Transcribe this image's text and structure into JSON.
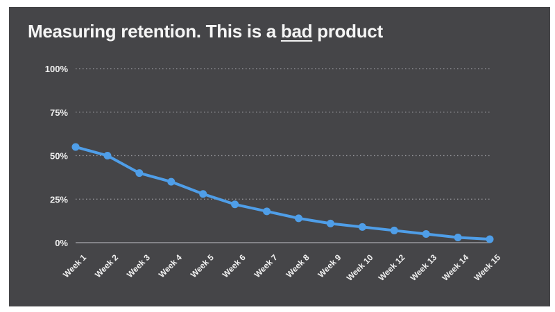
{
  "slide": {
    "title": {
      "part1": "Measuring retention. This is a ",
      "underlined": "bad",
      "part2": " product"
    }
  },
  "chart_data": {
    "type": "line",
    "title": "Measuring retention. This is a bad product",
    "categories": [
      "Week 1",
      "Week 2",
      "Week 3",
      "Week 4",
      "Week 5",
      "Week 6",
      "Week 7",
      "Week 8",
      "Week 9",
      "Week 10",
      "Week 12",
      "Week 13",
      "Week 14",
      "Week 15"
    ],
    "values": [
      55,
      50,
      40,
      35,
      28,
      22,
      18,
      14,
      11,
      9,
      7,
      5,
      3,
      2
    ],
    "unit": "%",
    "xlabel": "",
    "ylabel": "",
    "ylim": [
      0,
      100
    ],
    "yticks": [
      0,
      25,
      50,
      75,
      100
    ],
    "ytick_labels": [
      "0%",
      "25%",
      "50%",
      "75%",
      "100%"
    ],
    "grid": "horizontal-dotted",
    "legend_position": "none",
    "x_label_rotation_deg": -45,
    "colors": {
      "line": "#4f9ee8",
      "point": "#4f9ee8",
      "grid": "#9a9aa0",
      "axis": "#98989d",
      "tick_label": "#f0f0f0",
      "title_text": "#f5f5f5",
      "slide_background": "#454548",
      "page_background": "#ffffff"
    }
  }
}
